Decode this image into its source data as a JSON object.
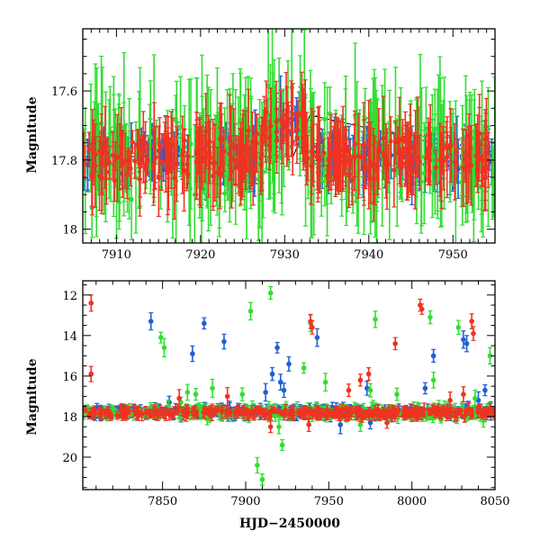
{
  "colors": {
    "blue": "#1f5fd6",
    "green": "#33dd33",
    "red": "#ee3322",
    "frame": "#000000",
    "line": "#000000"
  },
  "chart_data": [
    {
      "type": "scatter",
      "xlim": [
        7906,
        7955
      ],
      "ylim": [
        18.04,
        17.42
      ],
      "y_inverted": true,
      "xticks": [
        7910,
        7920,
        7930,
        7940,
        7950
      ],
      "yticks": [
        17.6,
        17.8,
        18
      ],
      "xtick_labels": [
        "7910",
        "7920",
        "7930",
        "7940",
        "7950"
      ],
      "ytick_labels": [
        "17.6",
        "17.8",
        "18"
      ],
      "xlabel": "",
      "ylabel": "Magnitude",
      "baseline": {
        "points": [
          [
            7906,
            17.79
          ],
          [
            7931,
            17.79
          ],
          [
            7933,
            17.67
          ],
          [
            7955,
            17.79
          ]
        ]
      },
      "series": [
        {
          "color": "blue",
          "x_range": [
            7906,
            7955
          ],
          "base": 17.79,
          "scatter": 0.07,
          "errbar": 0.05,
          "n": 260
        },
        {
          "color": "green",
          "x_range": [
            7906,
            7955
          ],
          "base": 17.79,
          "scatter": 0.16,
          "errbar": 0.12,
          "n": 260
        },
        {
          "color": "red",
          "x_range": [
            7906,
            7955
          ],
          "base": 17.79,
          "scatter": 0.09,
          "errbar": 0.07,
          "n": 320
        }
      ]
    },
    {
      "type": "scatter",
      "xlim": [
        7802,
        8050
      ],
      "ylim": [
        21.6,
        11.3
      ],
      "y_inverted": true,
      "xticks": [
        7850,
        7900,
        7950,
        8000,
        8050
      ],
      "yticks": [
        12,
        14,
        16,
        18,
        20
      ],
      "xtick_labels": [
        "7850",
        "7900",
        "7950",
        "8000",
        "8050"
      ],
      "ytick_labels": [
        "12",
        "14",
        "16",
        "18",
        "20"
      ],
      "xlabel": "HJD−2450000",
      "ylabel": "Magnitude",
      "series": [
        {
          "color": "blue",
          "base": 17.75,
          "scatter": 0.3,
          "n": 320,
          "outliers": [
            [
              7843,
              13.3
            ],
            [
              7854,
              17.3
            ],
            [
              7868,
              14.9
            ],
            [
              7875,
              13.4
            ],
            [
              7887,
              14.3
            ],
            [
              7912,
              16.8
            ],
            [
              7916,
              15.9
            ],
            [
              7919,
              14.6
            ],
            [
              7921,
              16.3
            ],
            [
              7923,
              16.7
            ],
            [
              7926,
              15.4
            ],
            [
              7943,
              14.1
            ],
            [
              7973,
              16.6
            ],
            [
              8013,
              15.0
            ],
            [
              8031,
              14.2
            ],
            [
              8033,
              14.4
            ],
            [
              8008,
              16.6
            ],
            [
              8040,
              17.2
            ],
            [
              8044,
              16.7
            ],
            [
              7975,
              18.3
            ],
            [
              7957,
              18.4
            ]
          ]
        },
        {
          "color": "green",
          "base": 17.8,
          "scatter": 0.4,
          "n": 360,
          "outliers": [
            [
              7849,
              14.1
            ],
            [
              7851,
              14.6
            ],
            [
              7870,
              16.9
            ],
            [
              7880,
              16.6
            ],
            [
              7903,
              12.8
            ],
            [
              7915,
              11.9
            ],
            [
              7910,
              21.1
            ],
            [
              7920,
              18.5
            ],
            [
              7939,
              13.4
            ],
            [
              7948,
              16.3
            ],
            [
              7969,
              18.4
            ],
            [
              7975,
              16.7
            ],
            [
              7978,
              13.2
            ],
            [
              7991,
              16.9
            ],
            [
              8011,
              13.1
            ],
            [
              8013,
              16.2
            ],
            [
              8028,
              13.6
            ],
            [
              8047,
              15.0
            ],
            [
              8043,
              18.2
            ],
            [
              8038,
              17.1
            ],
            [
              7898,
              16.9
            ],
            [
              7935,
              15.6
            ],
            [
              7922,
              19.4
            ],
            [
              7907,
              20.4
            ],
            [
              7865,
              16.8
            ],
            [
              7861,
              17.3
            ]
          ]
        },
        {
          "color": "red",
          "base": 17.8,
          "scatter": 0.28,
          "n": 360,
          "outliers": [
            [
              7807,
              12.4
            ],
            [
              7807,
              15.9
            ],
            [
              7860,
              17.1
            ],
            [
              7889,
              17.0
            ],
            [
              7939,
              13.3
            ],
            [
              7940,
              13.6
            ],
            [
              7962,
              16.7
            ],
            [
              7969,
              16.2
            ],
            [
              7974,
              15.9
            ],
            [
              7990,
              14.4
            ],
            [
              8005,
              12.5
            ],
            [
              8006,
              12.7
            ],
            [
              8036,
              13.3
            ],
            [
              8037,
              13.9
            ],
            [
              8031,
              16.9
            ],
            [
              7938,
              18.4
            ],
            [
              7915,
              18.5
            ],
            [
              7985,
              18.3
            ],
            [
              8023,
              17.2
            ]
          ]
        }
      ]
    }
  ]
}
